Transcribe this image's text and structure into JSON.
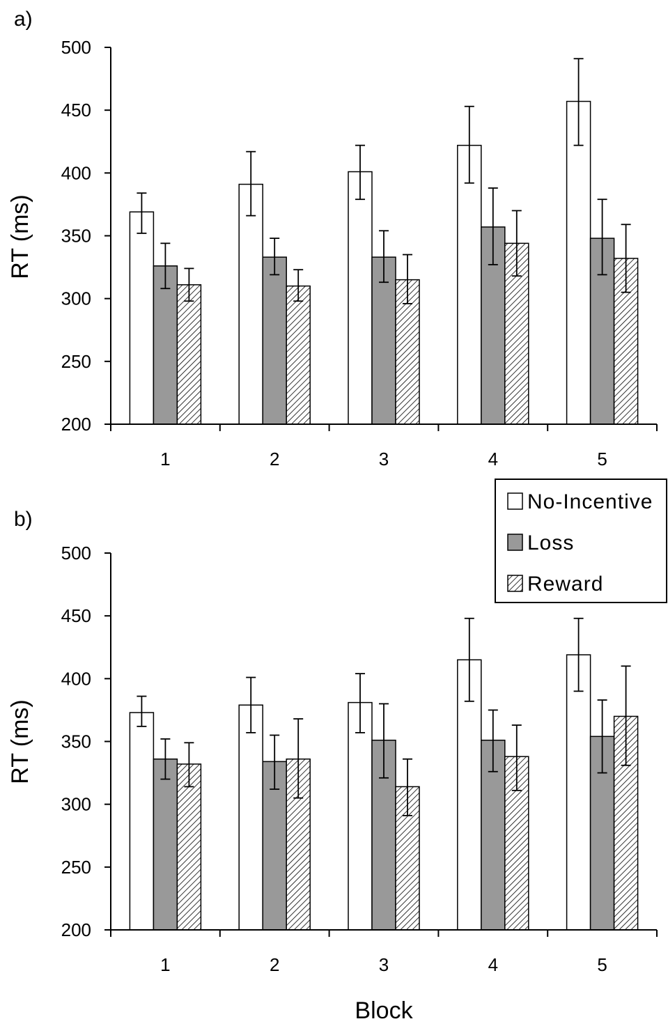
{
  "chart_data": [
    {
      "type": "bar",
      "panel_label": "a)",
      "categories": [
        "1",
        "2",
        "3",
        "4",
        "5"
      ],
      "xlabel": "",
      "ylabel": "RT (ms)",
      "ylim": [
        200,
        500
      ],
      "yticks": [
        "200",
        "250",
        "300",
        "350",
        "400",
        "450",
        "500"
      ],
      "grid": false,
      "series": [
        {
          "name": "No-Incentive",
          "values": [
            369,
            391,
            401,
            422,
            457
          ],
          "err_low": [
            352,
            366,
            379,
            392,
            422
          ],
          "err_high": [
            384,
            417,
            422,
            453,
            491
          ]
        },
        {
          "name": "Loss",
          "values": [
            326,
            333,
            333,
            357,
            348
          ],
          "err_low": [
            308,
            319,
            313,
            327,
            319
          ],
          "err_high": [
            344,
            348,
            354,
            388,
            379
          ]
        },
        {
          "name": "Reward",
          "values": [
            311,
            310,
            315,
            344,
            332
          ],
          "err_low": [
            298,
            298,
            296,
            318,
            305
          ],
          "err_high": [
            324,
            323,
            335,
            370,
            359
          ]
        }
      ]
    },
    {
      "type": "bar",
      "panel_label": "b)",
      "categories": [
        "1",
        "2",
        "3",
        "4",
        "5"
      ],
      "xlabel": "Block",
      "ylabel": "RT (ms)",
      "ylim": [
        200,
        500
      ],
      "yticks": [
        "200",
        "250",
        "300",
        "350",
        "400",
        "450",
        "500"
      ],
      "grid": false,
      "legend_position": "top-right",
      "series": [
        {
          "name": "No-Incentive",
          "values": [
            373,
            379,
            381,
            415,
            419
          ],
          "err_low": [
            362,
            357,
            357,
            382,
            390
          ],
          "err_high": [
            386,
            401,
            404,
            448,
            448
          ]
        },
        {
          "name": "Loss",
          "values": [
            336,
            334,
            351,
            351,
            354
          ],
          "err_low": [
            320,
            312,
            321,
            326,
            325
          ],
          "err_high": [
            352,
            355,
            380,
            375,
            383
          ]
        },
        {
          "name": "Reward",
          "values": [
            332,
            336,
            314,
            338,
            370
          ],
          "err_low": [
            314,
            305,
            291,
            311,
            331
          ],
          "err_high": [
            349,
            368,
            336,
            363,
            410
          ]
        }
      ]
    }
  ],
  "legend": {
    "items": [
      {
        "label": "No-Incentive",
        "style": "white"
      },
      {
        "label": "Loss",
        "style": "gray"
      },
      {
        "label": "Reward",
        "style": "hatched"
      }
    ]
  },
  "colors": {
    "no_incentive_fill": "#ffffff",
    "loss_fill": "#999999",
    "reward_hatch": "#000000",
    "axis": "#000000"
  }
}
